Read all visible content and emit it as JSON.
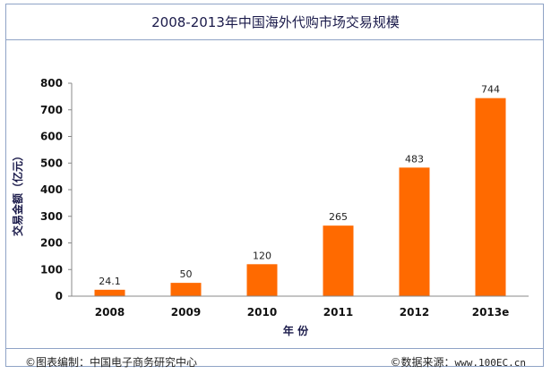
{
  "chart_data": {
    "type": "bar",
    "title": "2008-2013年中国海外代购市场交易规模",
    "xlabel": "年 份",
    "ylabel": "交易金额（亿元）",
    "categories": [
      "2008",
      "2009",
      "2010",
      "2011",
      "2012",
      "2013e"
    ],
    "values": [
      24.1,
      50,
      120,
      265,
      483,
      744
    ],
    "data_labels": [
      "24.1",
      "50",
      "120",
      "265",
      "483",
      "744"
    ],
    "ylim": [
      0,
      800
    ],
    "yticks": [
      0,
      100,
      200,
      300,
      400,
      500,
      600,
      700,
      800
    ],
    "grid": false,
    "bar_color": "#ff6a00"
  },
  "footer": {
    "left": "©图表编制：中国电子商务研究中心",
    "right_label": "©数据来源：",
    "right_url": "www.100EC.cn"
  }
}
